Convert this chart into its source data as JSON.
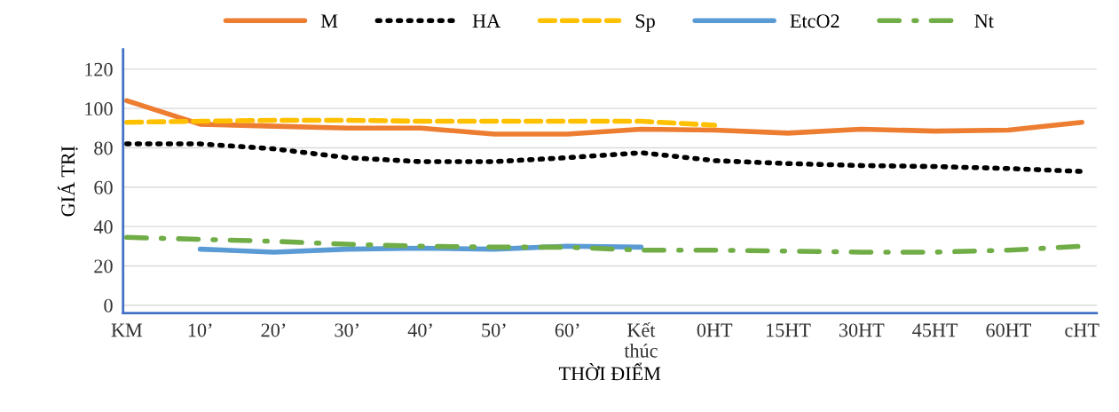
{
  "chart_data": {
    "type": "line",
    "xlabel": "THỜI ĐIỂM",
    "ylabel": "GIÁ TRỊ",
    "categories": [
      "KM",
      "10’",
      "20’",
      "30’",
      "40’",
      "50’",
      "60’",
      "Kết\nthúc",
      "0HT",
      "15HT",
      "30HT",
      "45HT",
      "60HT",
      "cHT"
    ],
    "ylim": [
      -4,
      130
    ],
    "yticks": [
      0,
      20,
      40,
      60,
      80,
      100,
      120
    ],
    "grid": "y",
    "legend": "top",
    "series": [
      {
        "name": "M",
        "color": "#ed7d31",
        "line_style": "solid",
        "values": [
          104,
          92,
          91,
          90,
          90,
          87,
          87,
          89.5,
          89,
          87.5,
          89.5,
          88.5,
          89,
          93
        ]
      },
      {
        "name": "HA",
        "color": "#000000",
        "line_style": "dotted",
        "values": [
          82,
          82,
          79.5,
          75,
          73,
          73,
          75,
          77.5,
          73.5,
          72,
          71,
          70.5,
          69.5,
          68
        ]
      },
      {
        "name": "Sp",
        "color": "#ffc000",
        "line_style": "dashed",
        "values": [
          93,
          93.5,
          94,
          94,
          93.5,
          93.5,
          93.5,
          93.5,
          91.5,
          null,
          null,
          null,
          null,
          null
        ]
      },
      {
        "name": "EtcO2",
        "color": "#5b9bd5",
        "line_style": "solid",
        "values": [
          null,
          28.5,
          27,
          28.5,
          29,
          28.5,
          30,
          29.5,
          null,
          null,
          null,
          null,
          null,
          null
        ]
      },
      {
        "name": "Nt",
        "color": "#70ad47",
        "line_style": "dashdot",
        "values": [
          34.5,
          33.5,
          32.5,
          31,
          30,
          29.5,
          29.5,
          28,
          28,
          27.5,
          27,
          27,
          28,
          30
        ]
      }
    ]
  }
}
